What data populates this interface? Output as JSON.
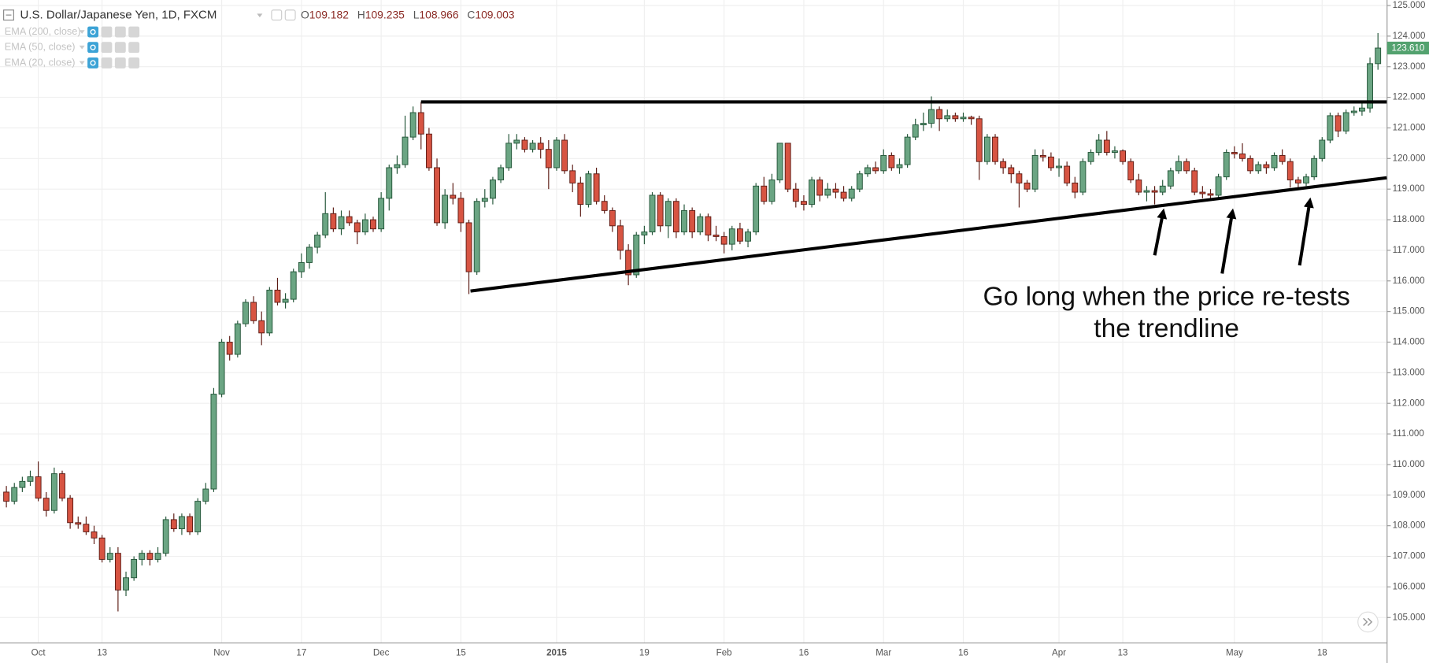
{
  "chart_data": {
    "type": "candlestick",
    "header": {
      "symbol": "U.S. Dollar/Japanese Yen, 1D, FXCM",
      "o_label": "O",
      "open": 109.182,
      "h_label": "H",
      "high": 109.235,
      "l_label": "L",
      "low": 108.966,
      "c_label": "C",
      "close": 109.003
    },
    "indicators": [
      "EMA (200, close)",
      "EMA (50, close)",
      "EMA (20, close)"
    ],
    "annotation": [
      "Go long when the price re-tests",
      "the trendline"
    ],
    "up_color": "#6ba583",
    "down_color": "#d75442",
    "up_border": "#225437",
    "down_border": "#5b1a13",
    "ylim": [
      104.17,
      125.18
    ],
    "yticks": [
      {
        "value": 105,
        "label": "105.000"
      },
      {
        "value": 106,
        "label": "106.000"
      },
      {
        "value": 107,
        "label": "107.000"
      },
      {
        "value": 108,
        "label": "108.000"
      },
      {
        "value": 109,
        "label": "109.000"
      },
      {
        "value": 110,
        "label": "110.000"
      },
      {
        "value": 111,
        "label": "111.000"
      },
      {
        "value": 112,
        "label": "112.000"
      },
      {
        "value": 113,
        "label": "113.000"
      },
      {
        "value": 114,
        "label": "114.000"
      },
      {
        "value": 115,
        "label": "115.000"
      },
      {
        "value": 116,
        "label": "116.000"
      },
      {
        "value": 117,
        "label": "117.000"
      },
      {
        "value": 118,
        "label": "118.000"
      },
      {
        "value": 119,
        "label": "119.000"
      },
      {
        "value": 120,
        "label": "120.000"
      },
      {
        "value": 121,
        "label": "121.000"
      },
      {
        "value": 122,
        "label": "122.000"
      },
      {
        "value": 123,
        "label": "123.000"
      },
      {
        "value": 124,
        "label": "124.000"
      },
      {
        "value": 125,
        "label": "125.000"
      }
    ],
    "grid": true,
    "last_price": {
      "value": 123.61,
      "label": "123.610"
    },
    "trendlines": [
      {
        "x": [
          52,
          173.1
        ],
        "y": [
          121.85,
          121.85
        ]
      },
      {
        "x": [
          58.2,
          173.1
        ],
        "y": [
          115.67,
          119.37
        ]
      }
    ],
    "categories": [
      null,
      null,
      null,
      null,
      "Oct",
      null,
      null,
      null,
      null,
      null,
      null,
      null,
      "13",
      null,
      null,
      null,
      null,
      null,
      null,
      null,
      null,
      null,
      null,
      null,
      null,
      null,
      null,
      "Nov",
      null,
      null,
      null,
      null,
      null,
      null,
      null,
      null,
      null,
      "17",
      null,
      null,
      null,
      null,
      null,
      null,
      null,
      null,
      null,
      "Dec",
      null,
      null,
      null,
      null,
      null,
      null,
      null,
      null,
      null,
      "15",
      null,
      null,
      null,
      null,
      null,
      null,
      null,
      null,
      null,
      null,
      null,
      "2015",
      null,
      null,
      null,
      null,
      null,
      null,
      null,
      null,
      null,
      null,
      "19",
      null,
      null,
      null,
      null,
      null,
      null,
      null,
      null,
      null,
      "Feb",
      null,
      null,
      null,
      null,
      null,
      null,
      null,
      null,
      null,
      "16",
      null,
      null,
      null,
      null,
      null,
      null,
      null,
      null,
      null,
      "Mar",
      null,
      null,
      null,
      null,
      null,
      null,
      null,
      null,
      null,
      "16",
      null,
      null,
      null,
      null,
      null,
      null,
      null,
      null,
      null,
      null,
      null,
      "Apr",
      null,
      null,
      null,
      null,
      null,
      null,
      null,
      "13",
      null,
      null,
      null,
      null,
      null,
      null,
      null,
      null,
      null,
      null,
      null,
      null,
      null,
      "May",
      null,
      null,
      null,
      null,
      null,
      null,
      null,
      null,
      null,
      null,
      "18",
      null,
      null,
      null,
      null,
      null,
      null,
      null
    ],
    "ohlc": [
      [
        109.1,
        109.3,
        108.6,
        108.8
      ],
      [
        108.8,
        109.4,
        108.7,
        109.25
      ],
      [
        109.25,
        109.6,
        109.1,
        109.45
      ],
      [
        109.45,
        109.8,
        109.3,
        109.6
      ],
      [
        109.6,
        110.1,
        108.8,
        108.9
      ],
      [
        108.9,
        109.1,
        108.3,
        108.5
      ],
      [
        108.5,
        109.9,
        108.4,
        109.7
      ],
      [
        109.7,
        109.8,
        108.8,
        108.9
      ],
      [
        108.9,
        109.0,
        107.9,
        108.1
      ],
      [
        108.1,
        108.3,
        107.9,
        108.05
      ],
      [
        108.05,
        108.3,
        107.7,
        107.8
      ],
      [
        107.8,
        108.0,
        107.4,
        107.6
      ],
      [
        107.6,
        107.7,
        106.8,
        106.9
      ],
      [
        106.9,
        107.3,
        106.8,
        107.1
      ],
      [
        107.1,
        107.3,
        105.2,
        105.9
      ],
      [
        105.9,
        106.5,
        105.7,
        106.3
      ],
      [
        106.3,
        107.0,
        106.2,
        106.9
      ],
      [
        106.9,
        107.2,
        106.7,
        107.1
      ],
      [
        107.1,
        107.2,
        106.7,
        106.9
      ],
      [
        106.9,
        107.3,
        106.8,
        107.1
      ],
      [
        107.1,
        108.3,
        107.0,
        108.2
      ],
      [
        108.2,
        108.4,
        107.8,
        107.9
      ],
      [
        107.9,
        108.4,
        107.7,
        108.3
      ],
      [
        108.3,
        108.4,
        107.7,
        107.8
      ],
      [
        107.8,
        108.9,
        107.7,
        108.8
      ],
      [
        108.8,
        109.4,
        108.7,
        109.2
      ],
      [
        109.2,
        112.5,
        109.1,
        112.3
      ],
      [
        112.3,
        114.1,
        112.2,
        114.0
      ],
      [
        114.0,
        114.2,
        113.4,
        113.6
      ],
      [
        113.6,
        114.7,
        113.5,
        114.6
      ],
      [
        114.6,
        115.4,
        114.5,
        115.3
      ],
      [
        115.3,
        115.5,
        114.6,
        114.7
      ],
      [
        114.7,
        115.0,
        113.9,
        114.3
      ],
      [
        114.3,
        115.8,
        114.2,
        115.7
      ],
      [
        115.7,
        116.1,
        115.2,
        115.3
      ],
      [
        115.3,
        115.6,
        115.1,
        115.4
      ],
      [
        115.4,
        116.4,
        115.3,
        116.3
      ],
      [
        116.3,
        116.9,
        116.1,
        116.6
      ],
      [
        116.6,
        117.2,
        116.4,
        117.1
      ],
      [
        117.1,
        117.6,
        116.9,
        117.5
      ],
      [
        117.5,
        118.9,
        117.4,
        118.2
      ],
      [
        118.2,
        118.4,
        117.6,
        117.7
      ],
      [
        117.7,
        118.3,
        117.5,
        118.1
      ],
      [
        118.1,
        118.3,
        117.8,
        117.9
      ],
      [
        117.9,
        118.0,
        117.2,
        117.6
      ],
      [
        117.6,
        118.2,
        117.5,
        118.0
      ],
      [
        118.0,
        118.1,
        117.6,
        117.7
      ],
      [
        117.7,
        118.9,
        117.6,
        118.7
      ],
      [
        118.7,
        119.8,
        118.3,
        119.7
      ],
      [
        119.7,
        120.1,
        119.5,
        119.8
      ],
      [
        119.8,
        121.4,
        119.7,
        120.7
      ],
      [
        120.7,
        121.7,
        120.6,
        121.5
      ],
      [
        121.5,
        121.85,
        120.3,
        120.8
      ],
      [
        120.8,
        121.0,
        119.6,
        119.7
      ],
      [
        119.7,
        120.0,
        117.8,
        117.9
      ],
      [
        117.9,
        119.0,
        117.7,
        118.8
      ],
      [
        118.8,
        119.2,
        118.5,
        118.7
      ],
      [
        118.7,
        118.9,
        117.6,
        117.9
      ],
      [
        117.9,
        118.0,
        115.57,
        116.3
      ],
      [
        116.3,
        118.7,
        116.2,
        118.6
      ],
      [
        118.6,
        119.0,
        118.4,
        118.7
      ],
      [
        118.7,
        119.4,
        118.5,
        119.3
      ],
      [
        119.3,
        119.8,
        119.2,
        119.7
      ],
      [
        119.7,
        120.8,
        119.6,
        120.5
      ],
      [
        120.5,
        120.8,
        120.3,
        120.6
      ],
      [
        120.6,
        120.7,
        120.2,
        120.3
      ],
      [
        120.3,
        120.6,
        120.2,
        120.5
      ],
      [
        120.5,
        120.7,
        120.0,
        120.3
      ],
      [
        120.3,
        120.6,
        119.0,
        119.7
      ],
      [
        119.7,
        120.7,
        119.6,
        120.6
      ],
      [
        120.6,
        120.8,
        119.5,
        119.6
      ],
      [
        119.6,
        119.8,
        118.9,
        119.2
      ],
      [
        119.2,
        119.4,
        118.1,
        118.5
      ],
      [
        118.5,
        119.6,
        118.4,
        119.5
      ],
      [
        119.5,
        119.7,
        118.5,
        118.6
      ],
      [
        118.6,
        118.8,
        118.2,
        118.3
      ],
      [
        118.3,
        118.4,
        117.6,
        117.8
      ],
      [
        117.8,
        118.0,
        116.7,
        117.0
      ],
      [
        117.0,
        117.2,
        115.86,
        116.2
      ],
      [
        116.2,
        117.6,
        116.1,
        117.5
      ],
      [
        117.5,
        117.8,
        117.2,
        117.6
      ],
      [
        117.6,
        118.9,
        117.5,
        118.8
      ],
      [
        118.8,
        118.9,
        117.6,
        117.8
      ],
      [
        117.8,
        118.7,
        117.4,
        118.6
      ],
      [
        118.6,
        118.7,
        117.4,
        117.6
      ],
      [
        117.6,
        118.5,
        117.5,
        118.3
      ],
      [
        118.3,
        118.4,
        117.4,
        117.6
      ],
      [
        117.6,
        118.2,
        117.5,
        118.1
      ],
      [
        118.1,
        118.2,
        117.3,
        117.5
      ],
      [
        117.5,
        117.8,
        117.3,
        117.45
      ],
      [
        117.45,
        117.6,
        116.9,
        117.2
      ],
      [
        117.2,
        117.8,
        117.0,
        117.7
      ],
      [
        117.7,
        117.9,
        117.2,
        117.3
      ],
      [
        117.3,
        117.7,
        117.1,
        117.6
      ],
      [
        117.6,
        119.2,
        117.5,
        119.1
      ],
      [
        119.1,
        119.4,
        118.5,
        118.6
      ],
      [
        118.6,
        119.5,
        118.5,
        119.3
      ],
      [
        119.3,
        120.5,
        119.2,
        120.5
      ],
      [
        120.5,
        120.5,
        118.9,
        119.0
      ],
      [
        119.0,
        119.2,
        118.4,
        118.6
      ],
      [
        118.6,
        118.8,
        118.3,
        118.5
      ],
      [
        118.5,
        119.4,
        118.4,
        119.3
      ],
      [
        119.3,
        119.4,
        118.6,
        118.8
      ],
      [
        118.8,
        119.2,
        118.7,
        119.0
      ],
      [
        119.0,
        119.2,
        118.7,
        118.9
      ],
      [
        118.9,
        119.1,
        118.6,
        118.7
      ],
      [
        118.7,
        119.1,
        118.6,
        119.0
      ],
      [
        119.0,
        119.6,
        118.9,
        119.5
      ],
      [
        119.5,
        119.8,
        119.4,
        119.7
      ],
      [
        119.7,
        119.9,
        119.5,
        119.6
      ],
      [
        119.6,
        120.3,
        119.5,
        120.1
      ],
      [
        120.1,
        120.2,
        119.6,
        119.7
      ],
      [
        119.7,
        120.0,
        119.5,
        119.8
      ],
      [
        119.8,
        120.8,
        119.7,
        120.7
      ],
      [
        120.7,
        121.3,
        120.6,
        121.1
      ],
      [
        121.1,
        121.5,
        120.9,
        121.15
      ],
      [
        121.15,
        122.03,
        121.0,
        121.6
      ],
      [
        121.6,
        121.7,
        120.9,
        121.3
      ],
      [
        121.3,
        121.6,
        121.2,
        121.4
      ],
      [
        121.4,
        121.5,
        121.2,
        121.3
      ],
      [
        121.3,
        121.5,
        121.2,
        121.35
      ],
      [
        121.35,
        121.4,
        121.1,
        121.3
      ],
      [
        121.3,
        121.4,
        119.3,
        119.9
      ],
      [
        119.9,
        120.8,
        119.8,
        120.7
      ],
      [
        120.7,
        120.8,
        119.8,
        119.9
      ],
      [
        119.9,
        120.0,
        119.5,
        119.7
      ],
      [
        119.7,
        119.8,
        119.2,
        119.5
      ],
      [
        119.5,
        119.6,
        118.4,
        119.2
      ],
      [
        119.2,
        119.3,
        118.9,
        119.0
      ],
      [
        119.0,
        120.3,
        118.9,
        120.1
      ],
      [
        120.1,
        120.3,
        119.9,
        120.05
      ],
      [
        120.05,
        120.2,
        119.6,
        119.7
      ],
      [
        119.7,
        120.0,
        119.4,
        119.75
      ],
      [
        119.75,
        119.9,
        119.1,
        119.2
      ],
      [
        119.2,
        119.4,
        118.7,
        118.9
      ],
      [
        118.9,
        120.0,
        118.8,
        119.9
      ],
      [
        119.9,
        120.3,
        119.8,
        120.2
      ],
      [
        120.2,
        120.8,
        120.1,
        120.6
      ],
      [
        120.6,
        120.9,
        120.1,
        120.2
      ],
      [
        120.2,
        120.4,
        120.0,
        120.25
      ],
      [
        120.25,
        120.3,
        119.8,
        119.9
      ],
      [
        119.9,
        120.0,
        119.2,
        119.3
      ],
      [
        119.3,
        119.5,
        118.8,
        118.9
      ],
      [
        118.9,
        119.1,
        118.6,
        118.95
      ],
      [
        118.95,
        119.1,
        118.5,
        118.9
      ],
      [
        118.9,
        119.3,
        118.8,
        119.1
      ],
      [
        119.1,
        119.7,
        119.0,
        119.6
      ],
      [
        119.6,
        120.1,
        119.5,
        119.9
      ],
      [
        119.9,
        120.0,
        119.5,
        119.6
      ],
      [
        119.6,
        119.7,
        118.8,
        118.9
      ],
      [
        118.9,
        119.1,
        118.7,
        118.85
      ],
      [
        118.85,
        119.0,
        118.7,
        118.8
      ],
      [
        118.8,
        119.5,
        118.7,
        119.4
      ],
      [
        119.4,
        120.3,
        119.3,
        120.2
      ],
      [
        120.2,
        120.4,
        120.0,
        120.15
      ],
      [
        120.15,
        120.5,
        119.9,
        120.0
      ],
      [
        120.0,
        120.1,
        119.5,
        119.6
      ],
      [
        119.6,
        119.9,
        119.5,
        119.8
      ],
      [
        119.8,
        119.9,
        119.5,
        119.7
      ],
      [
        119.7,
        120.2,
        119.6,
        120.1
      ],
      [
        120.1,
        120.3,
        119.8,
        119.9
      ],
      [
        119.9,
        120.0,
        119.05,
        119.3
      ],
      [
        119.3,
        119.4,
        119.0,
        119.2
      ],
      [
        119.2,
        119.5,
        119.1,
        119.4
      ],
      [
        119.4,
        120.1,
        119.3,
        120.0
      ],
      [
        120.0,
        120.7,
        119.9,
        120.6
      ],
      [
        120.6,
        121.5,
        120.5,
        121.4
      ],
      [
        121.4,
        121.5,
        120.7,
        120.9
      ],
      [
        120.9,
        121.6,
        120.8,
        121.5
      ],
      [
        121.5,
        121.7,
        121.4,
        121.55
      ],
      [
        121.55,
        121.8,
        121.4,
        121.65
      ],
      [
        121.65,
        123.3,
        121.5,
        123.1
      ],
      [
        123.1,
        124.1,
        122.9,
        123.61
      ]
    ]
  }
}
